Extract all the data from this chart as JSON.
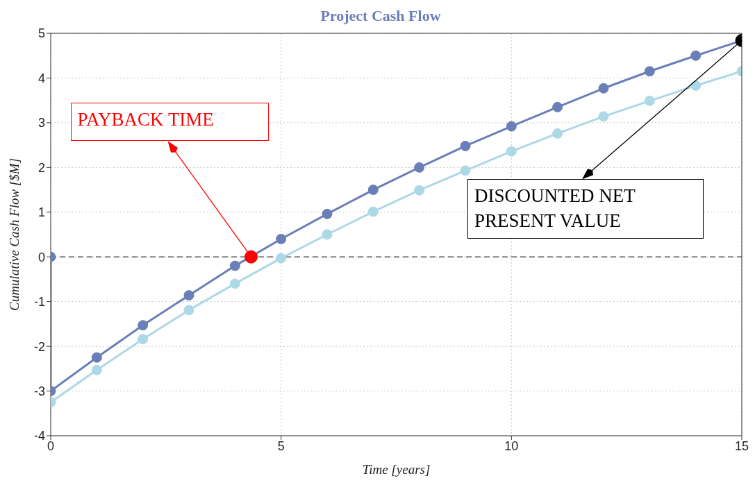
{
  "chart_data": {
    "type": "line",
    "title": "Project Cash Flow",
    "xlabel": "Time [years]",
    "ylabel": "Cumulative Cash Flow [$M]",
    "xlim": [
      0,
      15
    ],
    "xticks": [
      0,
      5,
      10,
      15
    ],
    "ylim": [
      -4,
      5
    ],
    "yticks": [
      -4,
      -3,
      -2,
      -1,
      0,
      1,
      2,
      3,
      4,
      5
    ],
    "grid": true,
    "legend": false,
    "marker": "circle",
    "line_style": "solid",
    "series": [
      {
        "color": "#6a7fb8",
        "x": [
          0,
          0,
          1,
          2,
          3,
          4,
          5,
          6,
          7,
          8,
          9,
          10,
          11,
          12,
          13,
          14,
          15
        ],
        "values": [
          0,
          -3,
          -2.25,
          -1.53,
          -0.86,
          -0.2,
          0.4,
          0.96,
          1.5,
          2.0,
          2.48,
          2.92,
          3.35,
          3.77,
          4.15,
          4.5,
          4.84
        ]
      },
      {
        "color": "#add8e6",
        "x": [
          0,
          1,
          2,
          3,
          4,
          5,
          6,
          7,
          8,
          9,
          10,
          11,
          12,
          13,
          14,
          15
        ],
        "values": [
          -3.25,
          -2.53,
          -1.84,
          -1.19,
          -0.6,
          -0.03,
          0.5,
          1.01,
          1.49,
          1.93,
          2.36,
          2.76,
          3.14,
          3.49,
          3.83,
          4.15
        ]
      },
      {
        "type": "scatter",
        "color": "#ff0000",
        "x": [
          4.35
        ],
        "values": [
          0
        ]
      },
      {
        "type": "scatter",
        "color": "#000000",
        "x": [
          15
        ],
        "values": [
          4.84
        ]
      }
    ],
    "ref_lines": [
      {
        "axis": "y",
        "value": 0,
        "color": "#808080",
        "line_style": "dashed"
      }
    ],
    "annotations": [
      {
        "text": "PAYBACK TIME",
        "x": 4.35,
        "y": 0
      },
      {
        "text": "DISCOUNTED NET PRESENT VALUE",
        "x": 15,
        "y": 4.84
      }
    ]
  }
}
